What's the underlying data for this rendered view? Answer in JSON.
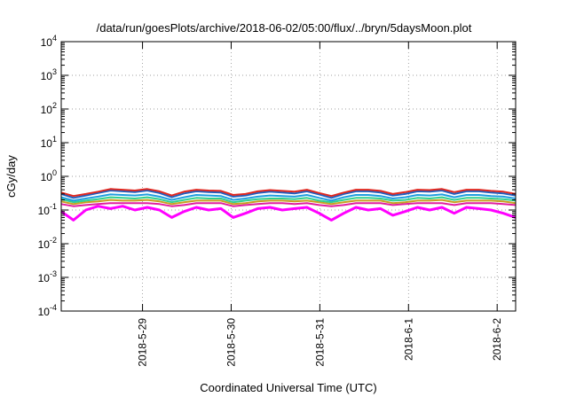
{
  "chart_data": {
    "type": "line",
    "title": "/data/run/goesPlots/archive/2018-06-02/05:00/flux/../bryn/5daysMoon.plot",
    "xlabel": "Coordinated Universal Time (UTC)",
    "ylabel": "cGy/day",
    "y_scale": "log",
    "ylim": [
      0.0001,
      10000
    ],
    "y_ticks": [
      {
        "base": "10",
        "exp": "-4",
        "value": 0.0001
      },
      {
        "base": "10",
        "exp": "-3",
        "value": 0.001
      },
      {
        "base": "10",
        "exp": "-2",
        "value": 0.01
      },
      {
        "base": "10",
        "exp": "-1",
        "value": 0.1
      },
      {
        "base": "10",
        "exp": "0",
        "value": 1
      },
      {
        "base": "10",
        "exp": "1",
        "value": 10
      },
      {
        "base": "10",
        "exp": "2",
        "value": 100
      },
      {
        "base": "10",
        "exp": "3",
        "value": 1000
      },
      {
        "base": "10",
        "exp": "4",
        "value": 10000
      }
    ],
    "xlim": [
      "2018-05-28 02:00",
      "2018-06-02 05:00"
    ],
    "x_ticks": [
      {
        "label": "2018-5-29",
        "value": "2018-05-29 00:00"
      },
      {
        "label": "2018-5-30",
        "value": "2018-05-30 00:00"
      },
      {
        "label": "2018-5-31",
        "value": "2018-05-31 00:00"
      },
      {
        "label": "2018-6-1",
        "value": "2018-06-01 00:00"
      },
      {
        "label": "2018-6-2",
        "value": "2018-06-02 00:00"
      }
    ],
    "grid": true,
    "series": [
      {
        "color": "#e0271f",
        "values": [
          0.33,
          0.26,
          0.3,
          0.35,
          0.42,
          0.4,
          0.38,
          0.42,
          0.36,
          0.27,
          0.35,
          0.4,
          0.38,
          0.37,
          0.28,
          0.3,
          0.36,
          0.39,
          0.37,
          0.35,
          0.4,
          0.32,
          0.26,
          0.33,
          0.4,
          0.4,
          0.37,
          0.3,
          0.34,
          0.4,
          0.39,
          0.42,
          0.34,
          0.4,
          0.4,
          0.37,
          0.35,
          0.3
        ]
      },
      {
        "color": "#1f5fbf",
        "values": [
          0.3,
          0.23,
          0.27,
          0.32,
          0.38,
          0.36,
          0.34,
          0.38,
          0.32,
          0.24,
          0.31,
          0.36,
          0.34,
          0.33,
          0.25,
          0.27,
          0.32,
          0.35,
          0.33,
          0.31,
          0.36,
          0.29,
          0.23,
          0.3,
          0.36,
          0.36,
          0.33,
          0.27,
          0.3,
          0.36,
          0.35,
          0.38,
          0.3,
          0.36,
          0.36,
          0.33,
          0.31,
          0.27
        ]
      },
      {
        "color": "#1f9ee0",
        "values": [
          0.24,
          0.19,
          0.22,
          0.25,
          0.29,
          0.28,
          0.27,
          0.29,
          0.25,
          0.2,
          0.24,
          0.28,
          0.27,
          0.26,
          0.2,
          0.22,
          0.25,
          0.27,
          0.26,
          0.25,
          0.28,
          0.23,
          0.19,
          0.24,
          0.28,
          0.28,
          0.26,
          0.22,
          0.24,
          0.28,
          0.27,
          0.29,
          0.24,
          0.28,
          0.28,
          0.26,
          0.25,
          0.22
        ]
      },
      {
        "color": "#2fcf8f",
        "values": [
          0.21,
          0.17,
          0.19,
          0.21,
          0.24,
          0.23,
          0.22,
          0.24,
          0.21,
          0.17,
          0.2,
          0.23,
          0.22,
          0.22,
          0.17,
          0.19,
          0.21,
          0.22,
          0.22,
          0.21,
          0.23,
          0.19,
          0.17,
          0.2,
          0.23,
          0.23,
          0.22,
          0.19,
          0.2,
          0.23,
          0.22,
          0.24,
          0.2,
          0.23,
          0.23,
          0.22,
          0.21,
          0.19
        ]
      },
      {
        "color": "#c8a020",
        "values": [
          0.18,
          0.15,
          0.17,
          0.18,
          0.2,
          0.19,
          0.19,
          0.2,
          0.18,
          0.15,
          0.17,
          0.19,
          0.19,
          0.19,
          0.15,
          0.16,
          0.18,
          0.19,
          0.19,
          0.18,
          0.19,
          0.17,
          0.15,
          0.17,
          0.19,
          0.19,
          0.19,
          0.16,
          0.17,
          0.19,
          0.19,
          0.2,
          0.17,
          0.19,
          0.19,
          0.19,
          0.18,
          0.16
        ]
      },
      {
        "color": "#e0209f",
        "values": [
          0.15,
          0.13,
          0.14,
          0.15,
          0.16,
          0.16,
          0.16,
          0.16,
          0.15,
          0.13,
          0.14,
          0.16,
          0.16,
          0.16,
          0.13,
          0.14,
          0.15,
          0.16,
          0.16,
          0.15,
          0.16,
          0.14,
          0.13,
          0.14,
          0.16,
          0.16,
          0.16,
          0.14,
          0.15,
          0.16,
          0.16,
          0.16,
          0.14,
          0.16,
          0.16,
          0.16,
          0.15,
          0.14
        ]
      },
      {
        "color": "#ff00ff",
        "values": [
          0.09,
          0.05,
          0.1,
          0.13,
          0.11,
          0.13,
          0.1,
          0.12,
          0.1,
          0.06,
          0.09,
          0.12,
          0.1,
          0.11,
          0.06,
          0.08,
          0.11,
          0.12,
          0.1,
          0.11,
          0.12,
          0.08,
          0.05,
          0.08,
          0.12,
          0.1,
          0.11,
          0.07,
          0.09,
          0.12,
          0.1,
          0.12,
          0.08,
          0.12,
          0.11,
          0.1,
          0.08,
          0.06
        ]
      }
    ]
  }
}
